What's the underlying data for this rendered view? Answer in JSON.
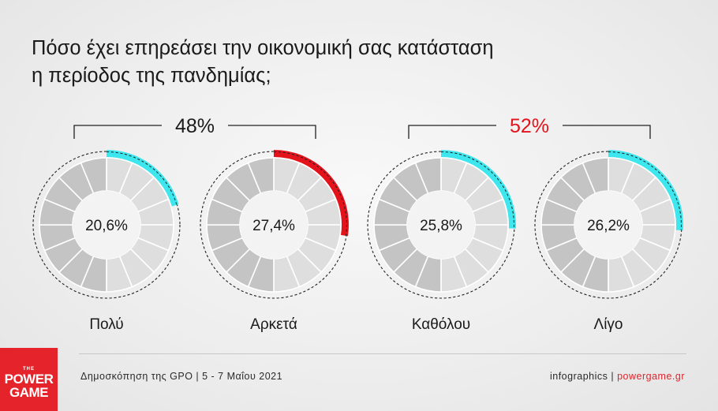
{
  "title": {
    "line1": "Πόσο έχει επηρεάσει την οικονομική σας κατάσταση",
    "line2": "η περίοδος της πανδημίας;"
  },
  "chart_data": {
    "type": "pie",
    "title": "Πόσο έχει επηρεάσει την οικονομική σας κατάσταση η περίοδος της πανδημίας;",
    "unit": "%",
    "categories": [
      "Πολύ",
      "Αρκετά",
      "Καθόλου",
      "Λίγο"
    ],
    "values": [
      20.6,
      27.4,
      25.8,
      26.2
    ],
    "value_labels": [
      "20,6%",
      "27,4%",
      "25,8%",
      "26,2%"
    ],
    "highlight_colors": [
      "#3ee6ee",
      "#e3121b",
      "#3ee6ee",
      "#3ee6ee"
    ],
    "groups": [
      {
        "label": "48%",
        "members": [
          0,
          1
        ],
        "color": "#1a1a1a"
      },
      {
        "label": "52%",
        "members": [
          2,
          3
        ],
        "color": "#e3121b"
      }
    ]
  },
  "footer": {
    "source": "Δημοσκόπηση της GPO | 5 - 7 Μαΐου 2021",
    "credit_prefix": "infographics",
    "credit_sep": "|",
    "credit_site": "powergame.gr"
  },
  "logo": {
    "the": "THE",
    "word1": "POWER",
    "word2": "GAME",
    "color": "#e4232b"
  },
  "colors": {
    "wheel_light": "#dedede",
    "wheel_dark": "#c4c4c4",
    "wheel_inner": "#f3f3f3",
    "text": "#1a1a1a"
  }
}
